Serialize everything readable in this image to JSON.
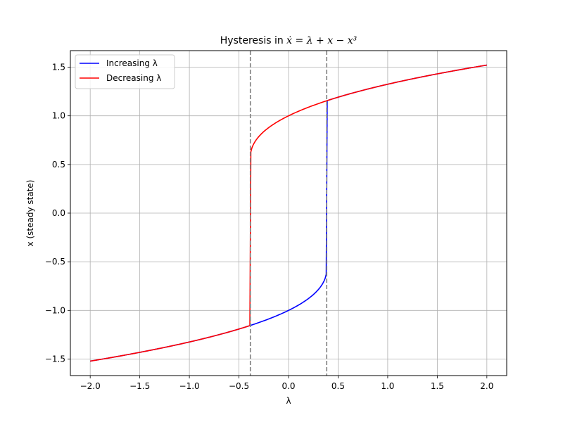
{
  "chart_data": {
    "type": "line",
    "title_prefix": "Hysteresis in ",
    "title_math": "ẋ = λ + x − x³",
    "xlabel": "λ",
    "ylabel": "x (steady state)",
    "xlim": [
      -2.2,
      2.2
    ],
    "ylim": [
      -1.67,
      1.67
    ],
    "xticks": [
      -2.0,
      -1.5,
      -1.0,
      -0.5,
      0.0,
      0.5,
      1.0,
      1.5,
      2.0
    ],
    "xtick_labels": [
      "−2.0",
      "−1.5",
      "−1.0",
      "−0.5",
      "0.0",
      "0.5",
      "1.0",
      "1.5",
      "2.0"
    ],
    "yticks": [
      -1.5,
      -1.0,
      -0.5,
      0.0,
      0.5,
      1.0,
      1.5
    ],
    "ytick_labels": [
      "−1.5",
      "−1.0",
      "−0.5",
      "0.0",
      "0.5",
      "1.0",
      "1.5"
    ],
    "grid": true,
    "legend_position": "top-left",
    "vlines": [
      -0.385,
      0.385
    ],
    "vline_color": "#808080",
    "series": [
      {
        "name": "Increasing λ",
        "color": "#0000ff",
        "x": [
          -2.0,
          -1.8,
          -1.6,
          -1.4,
          -1.2,
          -1.0,
          -0.8,
          -0.6,
          -0.4,
          -0.2,
          0.0,
          0.1,
          0.2,
          0.3,
          0.35,
          0.385,
          0.39,
          2.0
        ],
        "y": [
          -1.521,
          -1.471,
          -1.416,
          -1.357,
          -1.293,
          -1.221,
          -1.135,
          -1.031,
          -1.16,
          -1.08,
          -1.0,
          -0.952,
          -0.898,
          -0.832,
          -0.779,
          -0.66,
          1.158,
          1.521
        ]
      },
      {
        "name": "Decreasing λ",
        "color": "#ff0000",
        "x": [
          2.0,
          1.8,
          1.6,
          1.4,
          1.2,
          1.0,
          0.8,
          0.6,
          0.4,
          0.2,
          0.0,
          -0.1,
          -0.2,
          -0.3,
          -0.35,
          -0.385,
          -0.39,
          -2.0
        ],
        "y": [
          1.521,
          1.471,
          1.416,
          1.357,
          1.293,
          1.221,
          1.135,
          1.031,
          1.16,
          1.08,
          1.0,
          0.952,
          0.898,
          0.832,
          0.779,
          0.66,
          -1.158,
          -1.521
        ]
      }
    ]
  }
}
